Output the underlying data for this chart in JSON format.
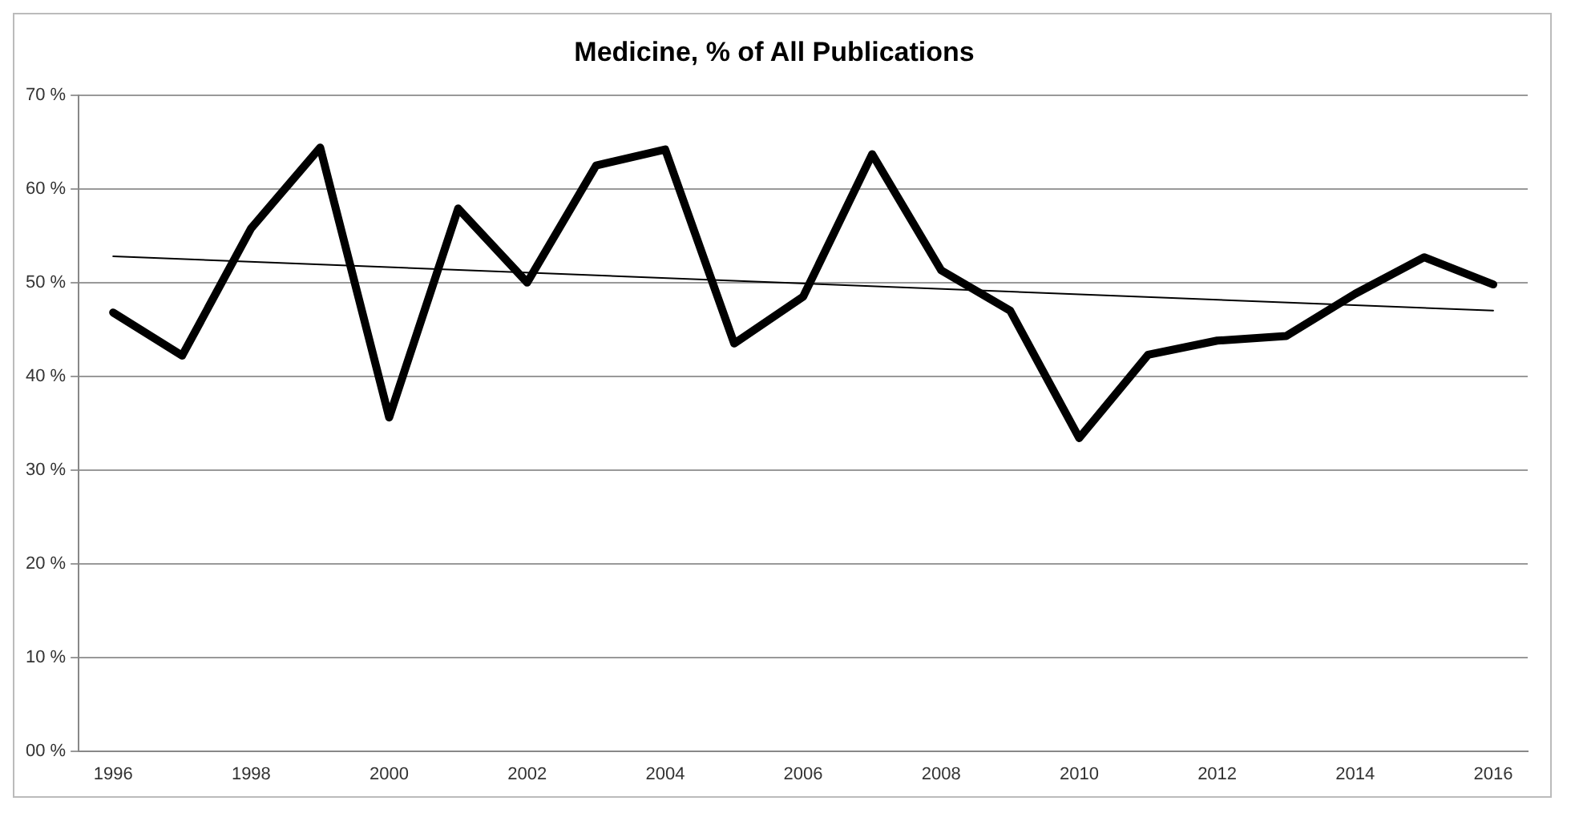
{
  "chart_data": {
    "type": "line",
    "title": "Medicine, % of All Publications",
    "categories": [
      "1996",
      null,
      "1998",
      null,
      "2000",
      null,
      "2002",
      null,
      "2004",
      null,
      "2006",
      null,
      "2008",
      null,
      "2010",
      null,
      "2012",
      null,
      "2014",
      null,
      "2016"
    ],
    "series": [
      {
        "color": "#000000",
        "values": [
          46.8,
          42.2,
          55.8,
          64.4,
          35.6,
          57.9,
          50.0,
          62.5,
          64.2,
          43.5,
          48.5,
          63.7,
          51.3,
          47.0,
          33.4,
          42.3,
          43.8,
          44.3,
          48.8,
          52.7,
          49.8
        ]
      },
      {
        "type": "line",
        "color": "#000000",
        "values": [
          52.8,
          null,
          null,
          null,
          null,
          null,
          null,
          null,
          null,
          null,
          null,
          null,
          null,
          null,
          null,
          null,
          null,
          null,
          null,
          null,
          47.0
        ]
      }
    ],
    "ylim": [
      0,
      70
    ],
    "yticks": [
      {
        "value": 0,
        "label": "00 %"
      },
      {
        "value": 10,
        "label": "10 %"
      },
      {
        "value": 20,
        "label": "20 %"
      },
      {
        "value": 30,
        "label": "30 %"
      },
      {
        "value": 40,
        "label": "40 %"
      },
      {
        "value": 50,
        "label": "50 %"
      },
      {
        "value": 60,
        "label": "60 %"
      },
      {
        "value": 70,
        "label": "70 %"
      }
    ],
    "grid": "y",
    "legend": false,
    "marker": "none",
    "line_style": "solid"
  }
}
